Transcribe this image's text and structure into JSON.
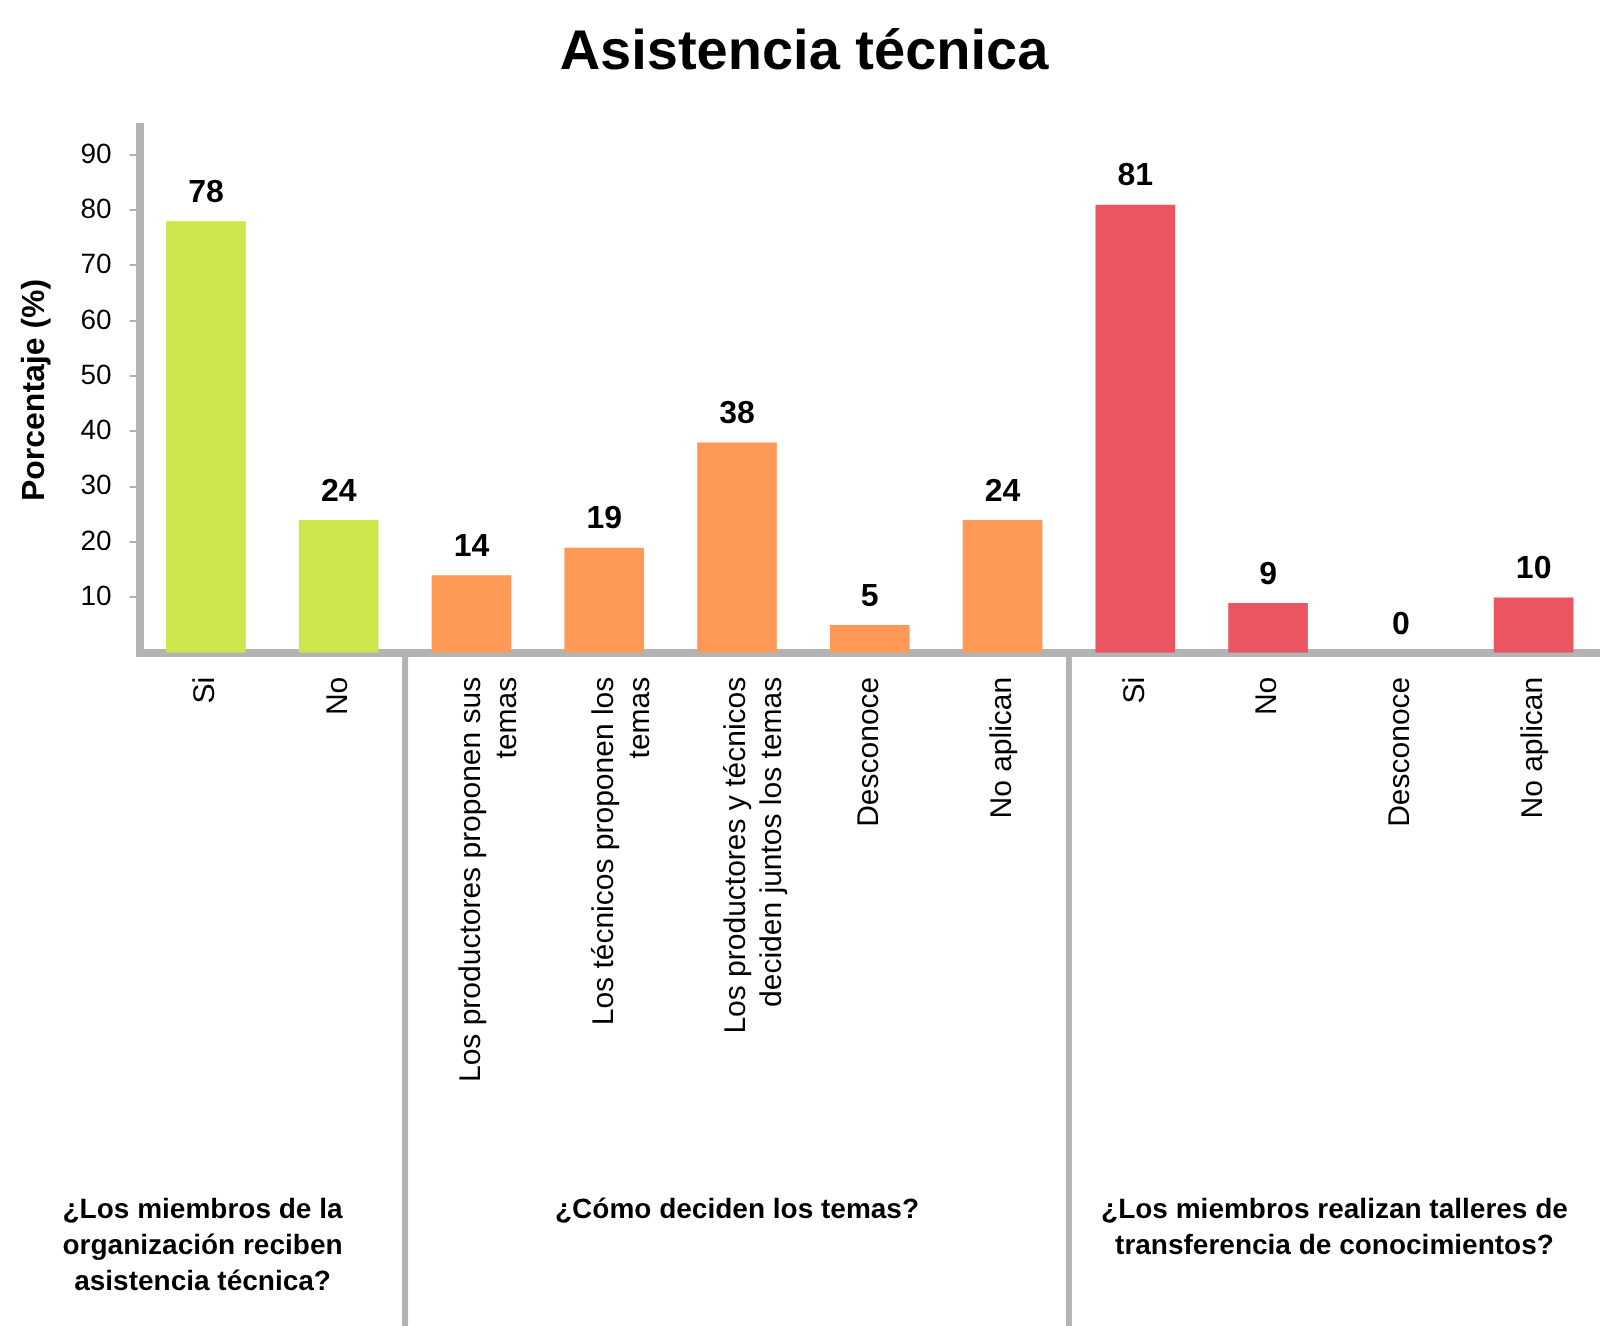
{
  "chart_data": {
    "type": "bar",
    "title": "Asistencia técnica",
    "ylabel": "Porcentaje (%)",
    "categories": [
      "Si",
      "No",
      "Los productores proponen sus temas",
      "Los técnicos proponen los temas",
      "Los productores y técnicos deciden juntos los temas",
      "Desconoce",
      "No aplican",
      "Si",
      "No",
      "Desconoce",
      "No aplican"
    ],
    "values": [
      78,
      24,
      14,
      19,
      38,
      5,
      24,
      81,
      9,
      0,
      10
    ],
    "colors": [
      "#cde64b",
      "#cde64b",
      "#ff9955",
      "#ff9955",
      "#ff9955",
      "#ff9955",
      "#ff9955",
      "#eb5562",
      "#eb5562",
      "#eb5562",
      "#eb5562"
    ],
    "ylim": [
      0,
      95
    ],
    "yticks": [
      10,
      20,
      30,
      40,
      50,
      60,
      70,
      80,
      90
    ],
    "data_labels": true,
    "annotations": [
      "¿Los miembros de la organización reciben asistencia técnica?",
      "¿Cómo deciden los temas?",
      "¿Los miembros realizan talleres de transferencia de conocimientos?"
    ]
  }
}
